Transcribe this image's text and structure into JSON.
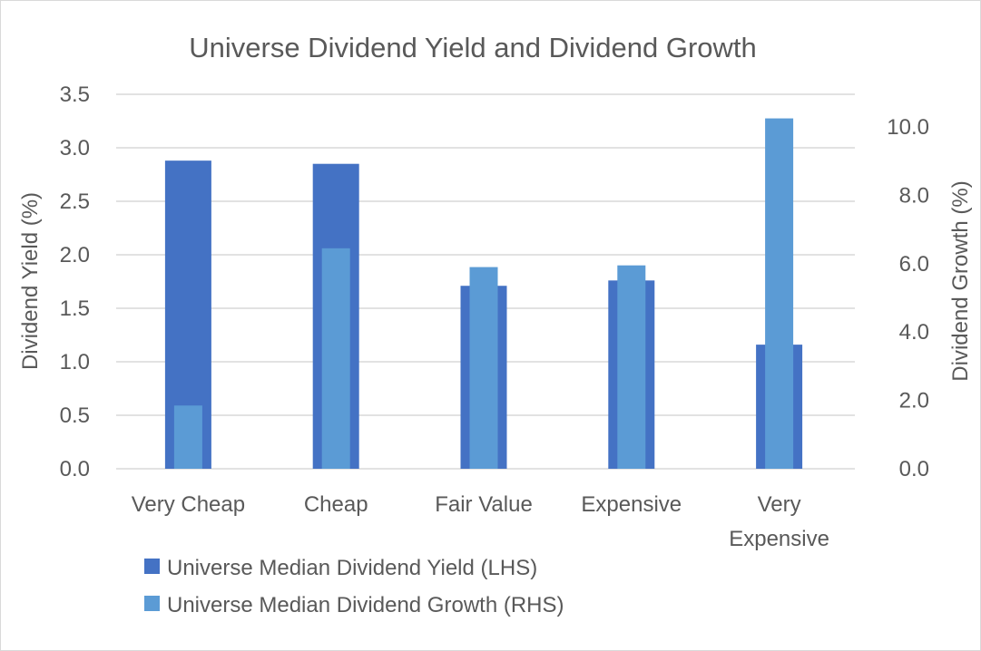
{
  "chart_data": {
    "type": "bar",
    "title": "Universe Dividend Yield and Dividend Growth",
    "categories": [
      [
        "Very Cheap"
      ],
      [
        "Cheap"
      ],
      [
        "Fair Value"
      ],
      [
        "Expensive"
      ],
      [
        "Very",
        "Expensive"
      ]
    ],
    "ylabel": "Dividend Yield (%)",
    "y2label": "Dividend Growth (%)",
    "ylim": [
      0,
      3.5
    ],
    "y2lim": [
      0,
      10.0
    ],
    "yticks": [
      "0.0",
      "0.5",
      "1.0",
      "1.5",
      "2.0",
      "2.5",
      "3.0",
      "3.5"
    ],
    "y2ticks": [
      "0.0",
      "2.0",
      "4.0",
      "6.0",
      "8.0",
      "10.0"
    ],
    "series": [
      {
        "name": "Universe Median Dividend Yield (LHS)",
        "axis": "left",
        "color": "#4472c4",
        "values": [
          2.88,
          2.85,
          1.71,
          1.76,
          1.16
        ]
      },
      {
        "name": "Universe Median Dividend Growth (RHS)",
        "axis": "right",
        "color": "#5b9bd5",
        "values": [
          1.85,
          6.45,
          5.9,
          5.95,
          10.25
        ]
      }
    ],
    "grid": true,
    "legend_position": "bottom-left"
  }
}
